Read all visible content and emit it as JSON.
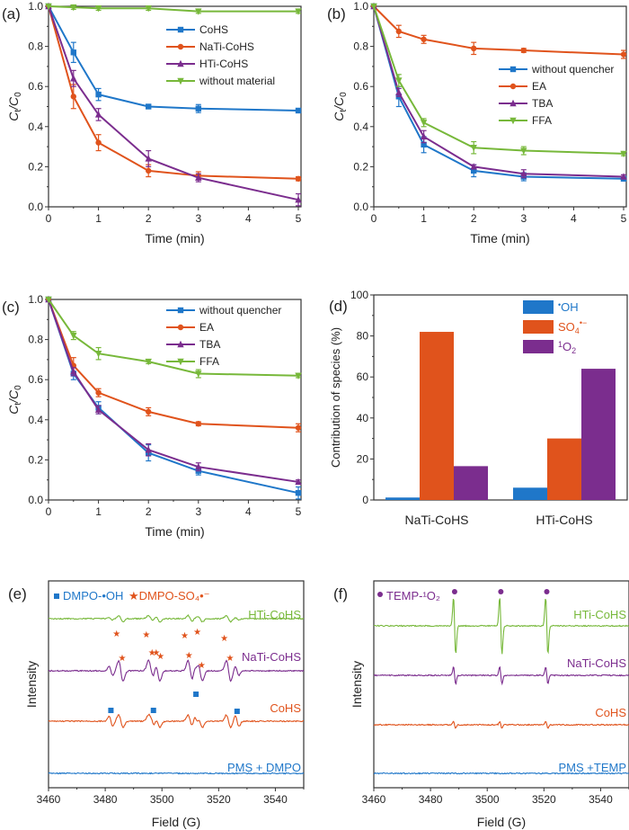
{
  "colors": {
    "blue": "#1f77c9",
    "orange": "#e0531c",
    "purple": "#7b2d8e",
    "green": "#77b83a",
    "axis": "#333333"
  },
  "chart_data": [
    {
      "panel": "(a)",
      "type": "line",
      "xlabel": "Time (min)",
      "ylabel": "Ct/C0",
      "xlim": [
        0,
        5
      ],
      "ylim": [
        0,
        1
      ],
      "xticks": [
        "0",
        "1",
        "2",
        "3",
        "4",
        "5"
      ],
      "yticks": [
        "0.0",
        "0.2",
        "0.4",
        "0.6",
        "0.8",
        "1.0"
      ],
      "legend": "top-right",
      "x": [
        0,
        0.5,
        1,
        2,
        3,
        5
      ],
      "series": [
        {
          "name": "CoHS",
          "color": "blue",
          "marker": "square",
          "values": [
            1.0,
            0.77,
            0.56,
            0.5,
            0.49,
            0.48
          ],
          "err": [
            0,
            0.05,
            0.03,
            0.01,
            0.02,
            0.01
          ]
        },
        {
          "name": "NaTi-CoHS",
          "color": "orange",
          "marker": "circle",
          "values": [
            1.0,
            0.55,
            0.32,
            0.18,
            0.155,
            0.14
          ],
          "err": [
            0,
            0.06,
            0.04,
            0.03,
            0.02,
            0.01
          ]
        },
        {
          "name": "HTi-CoHS",
          "color": "purple",
          "marker": "triangle-up",
          "values": [
            1.0,
            0.64,
            0.46,
            0.24,
            0.145,
            0.035
          ],
          "err": [
            0,
            0.04,
            0.03,
            0.04,
            0.02,
            0.03
          ]
        },
        {
          "name": "without material",
          "color": "green",
          "marker": "triangle-down",
          "values": [
            1.0,
            0.995,
            0.99,
            0.99,
            0.975,
            0.975
          ],
          "err": [
            0,
            0.01,
            0.01,
            0.01,
            0.01,
            0.01
          ]
        }
      ]
    },
    {
      "panel": "(b)",
      "type": "line",
      "xlabel": "Time (min)",
      "ylabel": "Ct/C0",
      "xlim": [
        0,
        5
      ],
      "ylim": [
        0,
        1
      ],
      "xticks": [
        "0",
        "1",
        "2",
        "3",
        "4",
        "5"
      ],
      "yticks": [
        "0.0",
        "0.2",
        "0.4",
        "0.6",
        "0.8",
        "1.0"
      ],
      "legend": "center-right",
      "x": [
        0,
        0.5,
        1,
        2,
        3,
        5
      ],
      "series": [
        {
          "name": "without quencher",
          "color": "blue",
          "marker": "square",
          "values": [
            1.0,
            0.55,
            0.31,
            0.18,
            0.15,
            0.14
          ],
          "err": [
            0,
            0.05,
            0.04,
            0.03,
            0.02,
            0.01
          ]
        },
        {
          "name": "EA",
          "color": "orange",
          "marker": "circle",
          "values": [
            1.0,
            0.875,
            0.835,
            0.79,
            0.78,
            0.76
          ],
          "err": [
            0,
            0.03,
            0.02,
            0.03,
            0.01,
            0.02
          ]
        },
        {
          "name": "TBA",
          "color": "purple",
          "marker": "triangle-up",
          "values": [
            1.0,
            0.57,
            0.35,
            0.2,
            0.165,
            0.15
          ],
          "err": [
            0,
            0.02,
            0.03,
            0.01,
            0.02,
            0.01
          ]
        },
        {
          "name": "FFA",
          "color": "green",
          "marker": "triangle-down",
          "values": [
            1.0,
            0.63,
            0.42,
            0.295,
            0.28,
            0.265
          ],
          "err": [
            0,
            0.03,
            0.02,
            0.03,
            0.02,
            0.01
          ]
        }
      ]
    },
    {
      "panel": "(c)",
      "type": "line",
      "xlabel": "Time (min)",
      "ylabel": "Ct/C0",
      "xlim": [
        0,
        5
      ],
      "ylim": [
        0,
        1
      ],
      "xticks": [
        "0",
        "1",
        "2",
        "3",
        "4",
        "5"
      ],
      "yticks": [
        "0.0",
        "0.2",
        "0.4",
        "0.6",
        "0.8",
        "1.0"
      ],
      "legend": "top-right",
      "x": [
        0,
        0.5,
        1,
        2,
        3,
        5
      ],
      "series": [
        {
          "name": "without quencher",
          "color": "blue",
          "marker": "square",
          "values": [
            1.0,
            0.63,
            0.46,
            0.235,
            0.145,
            0.035
          ],
          "err": [
            0,
            0.03,
            0.03,
            0.04,
            0.02,
            0.03
          ]
        },
        {
          "name": "EA",
          "color": "orange",
          "marker": "circle",
          "values": [
            1.0,
            0.67,
            0.535,
            0.44,
            0.38,
            0.36
          ],
          "err": [
            0,
            0.04,
            0.02,
            0.02,
            0.01,
            0.02
          ]
        },
        {
          "name": "TBA",
          "color": "purple",
          "marker": "triangle-up",
          "values": [
            1.0,
            0.64,
            0.45,
            0.25,
            0.165,
            0.09
          ],
          "err": [
            0,
            0.02,
            0.02,
            0.03,
            0.02,
            0.01
          ]
        },
        {
          "name": "FFA",
          "color": "green",
          "marker": "triangle-down",
          "values": [
            1.0,
            0.82,
            0.73,
            0.69,
            0.63,
            0.62
          ],
          "err": [
            0,
            0.02,
            0.03,
            0.01,
            0.02,
            0.01
          ]
        }
      ]
    },
    {
      "panel": "(d)",
      "type": "bar",
      "xlabel": "",
      "ylabel": "Contribution of species (%)",
      "ylim": [
        0,
        100
      ],
      "yticks": [
        "0",
        "20",
        "40",
        "60",
        "80",
        "100"
      ],
      "legend": "top-right",
      "categories": [
        "NaTi-CoHS",
        "HTi-CoHS"
      ],
      "series": [
        {
          "name": "•OH",
          "color": "blue",
          "values": [
            1.2,
            6
          ]
        },
        {
          "name": "SO4•−",
          "color": "orange",
          "values": [
            82,
            30
          ]
        },
        {
          "name": "1O2",
          "color": "purple",
          "values": [
            16.5,
            64
          ]
        }
      ]
    },
    {
      "panel": "(e)",
      "type": "line",
      "xlabel": "Field (G)",
      "ylabel": "Intensity",
      "xlim": [
        3460,
        3550
      ],
      "xticks": [
        "3460",
        "3480",
        "3500",
        "3520",
        "3540"
      ],
      "annotation": "■ DMPO-•OH ★DMPO-SO4•−",
      "series": [
        {
          "name": "HTi-CoHS",
          "color": "green"
        },
        {
          "name": "NaTi-CoHS",
          "color": "purple"
        },
        {
          "name": "CoHS",
          "color": "orange"
        },
        {
          "name": "PMS + DMPO",
          "color": "blue"
        }
      ],
      "oh_peaks_G": [
        3482,
        3497,
        3512,
        3526.5
      ],
      "so4_peaks_G": [
        3484,
        3486,
        3494.5,
        3497,
        3498,
        3500,
        3508,
        3509.5,
        3512.5,
        3514,
        3522,
        3524
      ]
    },
    {
      "panel": "(f)",
      "type": "line",
      "xlabel": "Field (G)",
      "ylabel": "Intensity",
      "xlim": [
        3460,
        3550
      ],
      "xticks": [
        "3460",
        "3480",
        "3500",
        "3520",
        "3540"
      ],
      "annotation": "● TEMP-1O2",
      "peaks_G": [
        3488.5,
        3504.8,
        3521
      ],
      "series": [
        {
          "name": "HTi-CoHS",
          "color": "green",
          "amplitude": 1.0
        },
        {
          "name": "NaTi-CoHS",
          "color": "purple",
          "amplitude": 0.3
        },
        {
          "name": "CoHS",
          "color": "orange",
          "amplitude": 0.12
        },
        {
          "name": "PMS +TEMP",
          "color": "blue",
          "amplitude": 0
        }
      ]
    }
  ]
}
